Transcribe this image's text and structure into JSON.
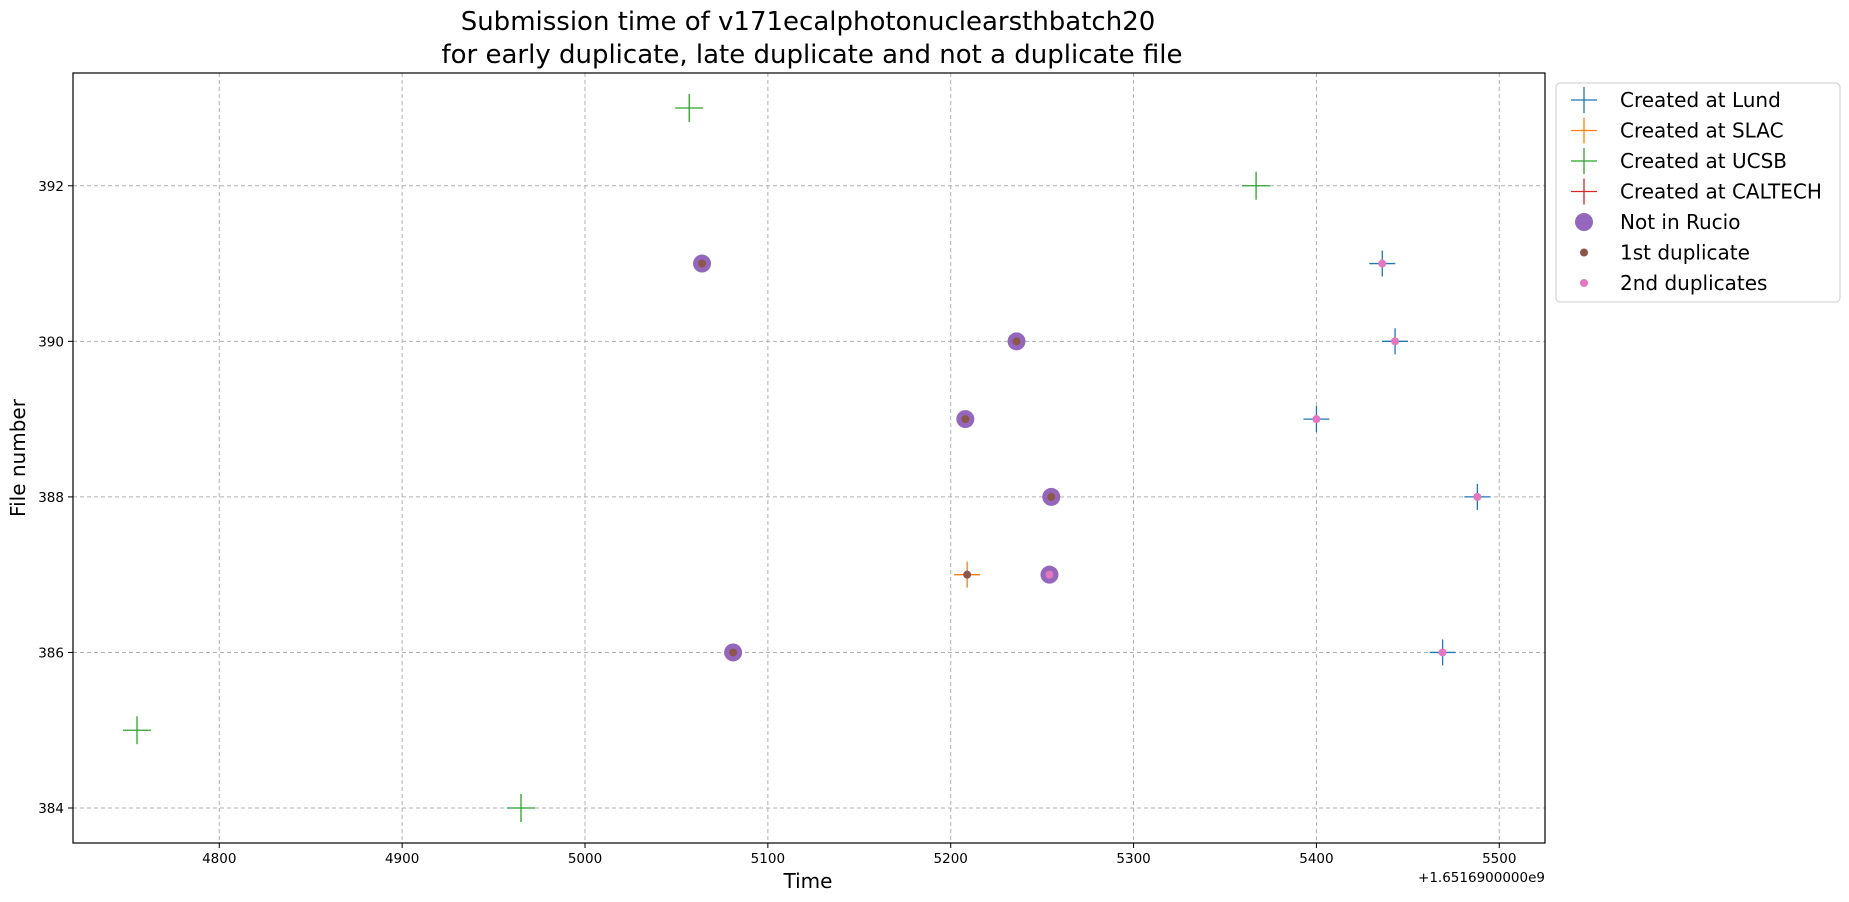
{
  "chart_data": {
    "type": "scatter",
    "title_line1": "Submission time of v171ecalphotonuclearsthbatch20",
    "title_line2": "for early duplicate, late duplicate and not a duplicate file",
    "xlabel": "Time",
    "ylabel": "File number",
    "x_offset_label": "+1.6516900000e9",
    "xlim": [
      4720,
      5525
    ],
    "ylim": [
      383.55,
      393.45
    ],
    "x_ticks": [
      4800,
      4900,
      5000,
      5100,
      5200,
      5300,
      5400,
      5500
    ],
    "y_ticks": [
      384,
      386,
      388,
      390,
      392
    ],
    "grid": true,
    "legend_position": "outside-upper-right",
    "series": [
      {
        "name": "Created at Lund",
        "marker": "plus",
        "color": "#1f77b4",
        "points": [
          [
            5436,
            391
          ],
          [
            5443,
            390
          ],
          [
            5400,
            389
          ],
          [
            5488,
            388
          ],
          [
            5469,
            386
          ]
        ]
      },
      {
        "name": "Created at SLAC",
        "marker": "plus",
        "color": "#ff7f0e",
        "points": [
          [
            5209,
            387
          ]
        ]
      },
      {
        "name": "Created at UCSB",
        "marker": "plus",
        "color": "#2ca02c",
        "points": [
          [
            5057,
            393
          ],
          [
            5367,
            392
          ],
          [
            4755,
            385
          ],
          [
            4965,
            384
          ]
        ]
      },
      {
        "name": "Created at CALTECH",
        "marker": "plus",
        "color": "#d62728",
        "points": []
      },
      {
        "name": "Not in Rucio",
        "marker": "circle-large",
        "color": "#9467bd",
        "points": [
          [
            5064,
            391
          ],
          [
            5236,
            390
          ],
          [
            5208,
            389
          ],
          [
            5255,
            388
          ],
          [
            5254,
            387
          ],
          [
            5081,
            386
          ]
        ]
      },
      {
        "name": "1st duplicate",
        "marker": "dot",
        "color": "#8c564b",
        "points": [
          [
            5064,
            391
          ],
          [
            5236,
            390
          ],
          [
            5208,
            389
          ],
          [
            5255,
            388
          ],
          [
            5209,
            387
          ],
          [
            5081,
            386
          ]
        ]
      },
      {
        "name": "2nd duplicates",
        "marker": "dot",
        "color": "#e377c2",
        "points": [
          [
            5436,
            391
          ],
          [
            5443,
            390
          ],
          [
            5400,
            389
          ],
          [
            5488,
            388
          ],
          [
            5254,
            387
          ],
          [
            5469,
            386
          ]
        ]
      }
    ]
  }
}
